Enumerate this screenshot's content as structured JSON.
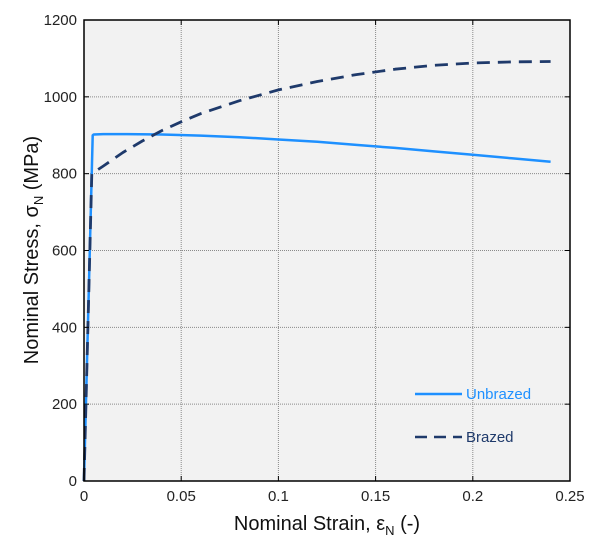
{
  "chart_data": {
    "type": "line",
    "xlabel": {
      "main": "Nominal Strain, ε",
      "sub": "N",
      "suffix": " (-)"
    },
    "ylabel": {
      "main": "Nominal Stress, σ",
      "sub": "N",
      "suffix": " (MPa)"
    },
    "xlim": [
      0,
      0.25
    ],
    "ylim": [
      0,
      1200
    ],
    "xticks": [
      0,
      0.05,
      0.1,
      0.15,
      0.2,
      0.25
    ],
    "xtick_labels": [
      "0",
      "0.05",
      "0.1",
      "0.15",
      "0.2",
      "0.25"
    ],
    "yticks": [
      0,
      200,
      400,
      600,
      800,
      1000,
      1200
    ],
    "ytick_labels": [
      "0",
      "200",
      "400",
      "600",
      "800",
      "1000",
      "1200"
    ],
    "grid": true,
    "legend_position": "bottom-right",
    "series": [
      {
        "name": "Unbrazed",
        "color": "#1e90ff",
        "style": "solid",
        "x": [
          0,
          0.0045,
          0.005,
          0.01,
          0.02,
          0.04,
          0.06,
          0.08,
          0.1,
          0.12,
          0.14,
          0.16,
          0.18,
          0.2,
          0.22,
          0.24
        ],
        "y": [
          0,
          900,
          902,
          903,
          903,
          902,
          899,
          895,
          889,
          883,
          875,
          867,
          858,
          849,
          840,
          831
        ]
      },
      {
        "name": "Brazed",
        "color": "#1f3a6b",
        "style": "dashed",
        "x": [
          0,
          0.004,
          0.01,
          0.02,
          0.03,
          0.04,
          0.05,
          0.06,
          0.08,
          0.1,
          0.12,
          0.14,
          0.16,
          0.18,
          0.2,
          0.22,
          0.24
        ],
        "y": [
          0,
          800,
          820,
          855,
          885,
          912,
          935,
          956,
          990,
          1018,
          1040,
          1058,
          1072,
          1082,
          1088,
          1091,
          1092
        ]
      }
    ]
  }
}
